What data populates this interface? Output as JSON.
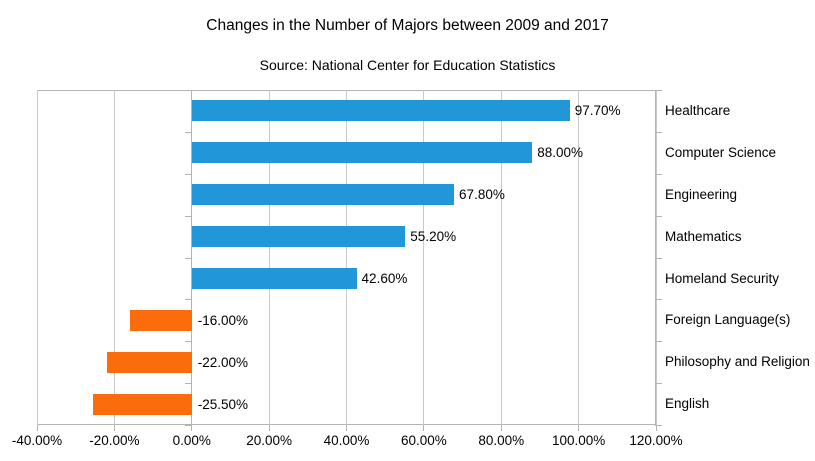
{
  "title": "Changes in the Number of Majors between 2009 and 2017",
  "subtitle": "Source: National Center for Education Statistics",
  "chart_data": {
    "type": "bar",
    "orientation": "horizontal",
    "title": "Changes in the Number of Majors between 2009 and 2017",
    "subtitle": "Source: National Center for Education Statistics",
    "categories": [
      "Healthcare",
      "Computer Science",
      "Engineering",
      "Mathematics",
      "Homeland Security",
      "Foreign Language(s)",
      "Philosophy and Religion",
      "English"
    ],
    "values": [
      97.7,
      88.0,
      67.8,
      55.2,
      42.6,
      -16.0,
      -22.0,
      -25.5
    ],
    "data_labels": [
      "97.70%",
      "88.00%",
      "67.80%",
      "55.20%",
      "42.60%",
      "-16.00%",
      "-22.00%",
      "-25.50%"
    ],
    "x_ticks": [
      -40,
      -20,
      0,
      20,
      40,
      60,
      80,
      100,
      120
    ],
    "x_tick_labels": [
      "-40.00%",
      "-20.00%",
      "0.00%",
      "20.00%",
      "40.00%",
      "60.00%",
      "80.00%",
      "100.00%",
      "120.00%"
    ],
    "xlim": [
      -40,
      120
    ],
    "grid": true,
    "legend": "none",
    "category_labels_position": "right",
    "colors": {
      "positive_bar": "#2196d9",
      "negative_bar": "#fb6d0c",
      "gridline": "#c9c9c9",
      "axis": "#b3b3b3",
      "text": "#000000",
      "background": "#ffffff"
    }
  }
}
